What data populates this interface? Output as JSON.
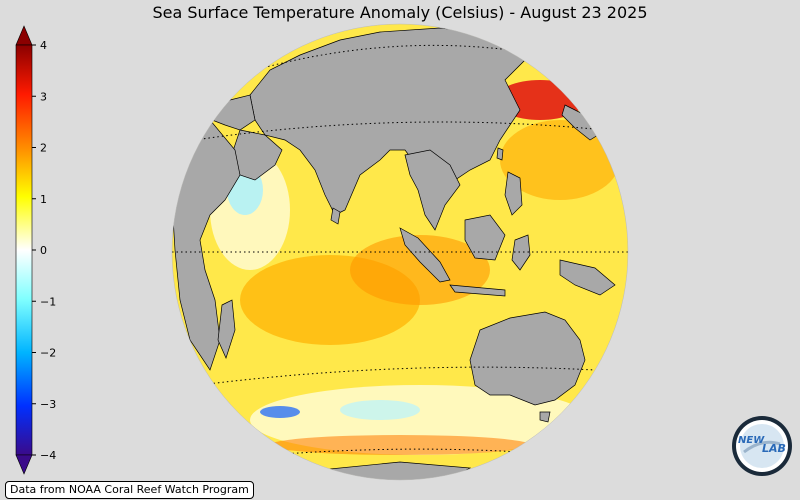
{
  "title": "Sea Surface Temperature Anomaly (Celsius) - August 23 2025",
  "credit": "Data from NOAA Coral Reef Watch Program",
  "colorbar": {
    "min": -4,
    "max": 4,
    "ticks": [
      "4",
      "3",
      "2",
      "1",
      "0",
      "−1",
      "−2",
      "−3",
      "−4"
    ],
    "colors": [
      "#3a0a8a",
      "#0050ff",
      "#00c8ff",
      "#ffffff",
      "#ffff00",
      "#ff9900",
      "#ff2000",
      "#8b0000"
    ]
  },
  "map": {
    "land_color": "#a8a8a8",
    "ocean_base_color": "#ffe24a",
    "gridline_style": "dotted"
  },
  "logo": {
    "text_left": "NEW",
    "text_right": "LAB"
  }
}
